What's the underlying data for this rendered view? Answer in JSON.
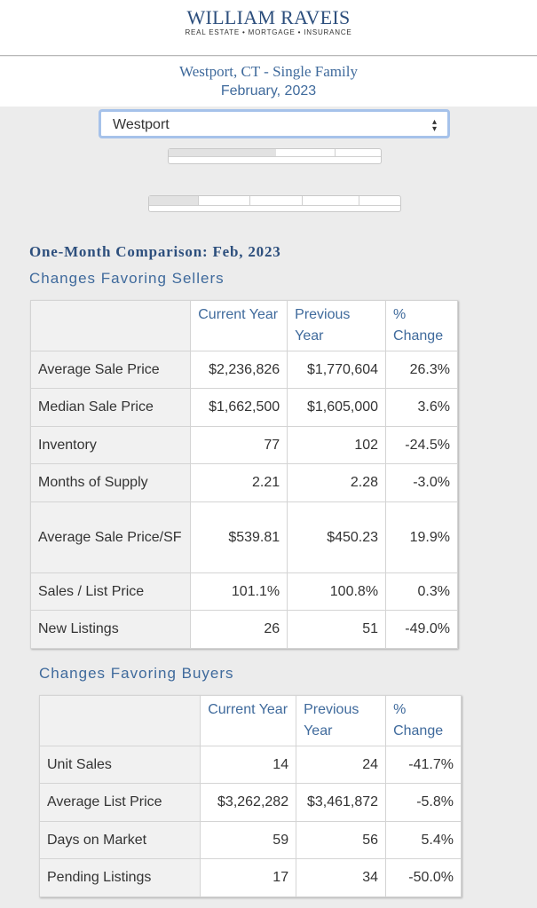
{
  "brand": {
    "name": "WILLIAM RAVEIS",
    "tagline": "REAL ESTATE • MORTGAGE • INSURANCE"
  },
  "report": {
    "title": "Westport, CT - Single Family",
    "date": "February, 2023"
  },
  "location_select": {
    "value": "Westport"
  },
  "comparison": {
    "heading": "One-Month Comparison:  Feb, 2023",
    "sellers_heading": "Changes Favoring Sellers",
    "buyers_heading": "Changes Favoring Buyers",
    "columns": [
      "Current Year",
      "Previous Year",
      "% Change"
    ]
  },
  "sellers_rows": [
    {
      "label": "Average Sale Price",
      "current": "$2,236,826",
      "previous": "$1,770,604",
      "change": "26.3%"
    },
    {
      "label": "Median Sale Price",
      "current": "$1,662,500",
      "previous": "$1,605,000",
      "change": "3.6%"
    },
    {
      "label": "Inventory",
      "current": "77",
      "previous": "102",
      "change": "-24.5%"
    },
    {
      "label": "Months of Supply",
      "current": "2.21",
      "previous": "2.28",
      "change": "-3.0%"
    },
    {
      "label": "Average Sale Price/SF",
      "current": "$539.81",
      "previous": "$450.23",
      "change": "19.9%"
    },
    {
      "label": "Sales / List Price",
      "current": "101.1%",
      "previous": "100.8%",
      "change": "0.3%"
    },
    {
      "label": "New Listings",
      "current": "26",
      "previous": "51",
      "change": "-49.0%"
    }
  ],
  "buyers_rows": [
    {
      "label": "Unit Sales",
      "current": "14",
      "previous": "24",
      "change": "-41.7%"
    },
    {
      "label": "Average List Price",
      "current": "$3,262,282",
      "previous": "$3,461,872",
      "change": "-5.8%"
    },
    {
      "label": "Days on Market",
      "current": "59",
      "previous": "56",
      "change": "5.4%"
    },
    {
      "label": "Pending Listings",
      "current": "17",
      "previous": "34",
      "change": "-50.0%"
    }
  ]
}
